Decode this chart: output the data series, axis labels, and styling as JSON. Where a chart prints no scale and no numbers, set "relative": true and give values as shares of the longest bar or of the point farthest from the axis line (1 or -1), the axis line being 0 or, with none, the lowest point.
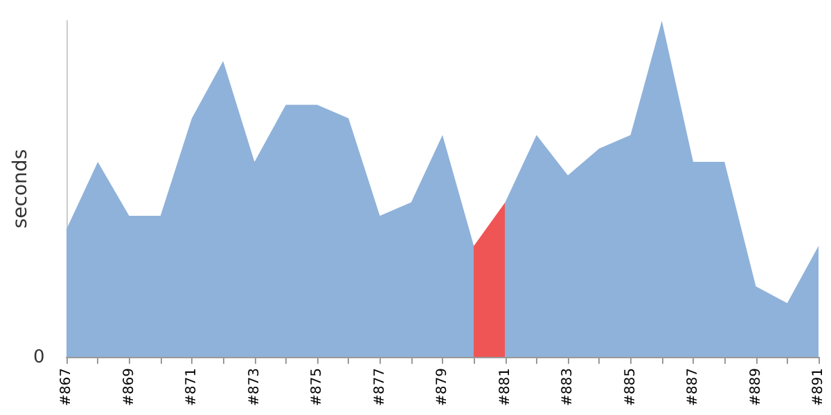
{
  "chart_data": {
    "type": "area",
    "relative": true,
    "ylabel": "seconds",
    "annotations": [
      "0"
    ],
    "categories": [
      "#867",
      null,
      "#869",
      null,
      "#871",
      null,
      "#873",
      null,
      "#875",
      null,
      "#877",
      null,
      "#879",
      null,
      "#881",
      null,
      "#883",
      null,
      "#885",
      null,
      "#887",
      null,
      "#889",
      null,
      "#891"
    ],
    "values": [
      0.38,
      0.58,
      0.42,
      0.42,
      0.71,
      0.88,
      0.58,
      0.75,
      0.75,
      0.71,
      0.42,
      0.46,
      0.66,
      0.33,
      0.46,
      0.66,
      0.54,
      0.62,
      0.66,
      1,
      0.58,
      0.58,
      0.21,
      0.16,
      0.33
    ],
    "colors": [
      "#8fb2da",
      "#8fb2da",
      "#8fb2da",
      "#8fb2da",
      "#8fb2da",
      "#8fb2da",
      "#8fb2da",
      "#8fb2da",
      "#8fb2da",
      "#8fb2da",
      "#8fb2da",
      "#8fb2da",
      "#8fb2da",
      "#f05555",
      "#8fb2da",
      "#8fb2da",
      "#8fb2da",
      "#8fb2da",
      "#8fb2da",
      "#8fb2da",
      "#8fb2da",
      "#8fb2da",
      "#8fb2da",
      "#8fb2da",
      "#8fb2da"
    ]
  }
}
